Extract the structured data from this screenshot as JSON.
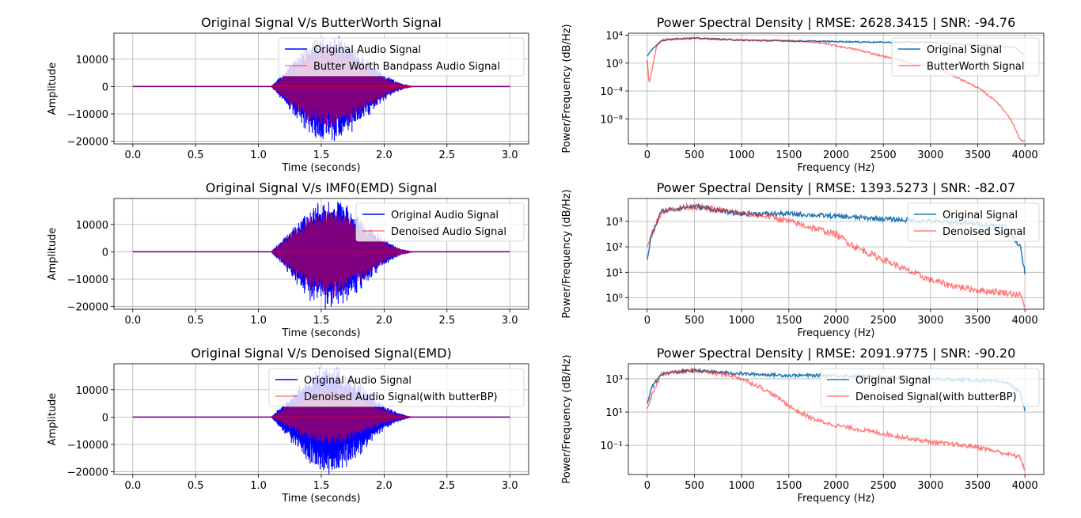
{
  "chart_data": [
    {
      "type": "line",
      "kind": "time",
      "title": "Original Signal V/s ButterWorth Signal",
      "xlabel": "Time (seconds)",
      "ylabel": "Amplitude",
      "xlim": [
        -0.15,
        3.15
      ],
      "ylim": [
        -21000,
        19500
      ],
      "xticks": [
        0,
        0.5,
        1.0,
        1.5,
        2.0,
        2.5,
        3.0
      ],
      "xtick_labels": [
        "0.0",
        "0.5",
        "1.0",
        "1.5",
        "2.0",
        "2.5",
        "3.0"
      ],
      "yticks": [
        -20000,
        -10000,
        0,
        10000
      ],
      "ytick_labels": [
        "−20000",
        "−10000",
        "0",
        "10000"
      ],
      "grid": true,
      "legend_position": "upper-right",
      "signal_span": [
        1.1,
        2.25
      ],
      "original_peak": [
        18000,
        -19500
      ],
      "filtered_peak": [
        16500,
        -17000
      ],
      "series": [
        {
          "name": "Original Audio Signal",
          "color": "#0000ff"
        },
        {
          "name": "Butter Worth Bandpass Audio Signal",
          "color": "#ff0000",
          "alpha": 0.5
        }
      ]
    },
    {
      "type": "line",
      "kind": "psd",
      "title": "Power Spectral Density | RMSE: 2628.3415 | SNR: -94.76",
      "xlabel": "Frequency (Hz)",
      "ylabel": "Power/Frequency (dB/Hz)",
      "log_y": true,
      "xlim": [
        -200,
        4200
      ],
      "ylim_log10": [
        -11.6,
        4.3
      ],
      "xticks": [
        0,
        500,
        1000,
        1500,
        2000,
        2500,
        3000,
        3500,
        4000
      ],
      "yticks_exp": [
        4,
        0,
        -4,
        -8
      ],
      "grid": true,
      "legend_position": "upper-right",
      "series": [
        {
          "name": "Original Signal",
          "color": "#1f77b4",
          "x": [
            0,
            50,
            150,
            300,
            500,
            1000,
            1500,
            2000,
            2500,
            3000,
            3500,
            3900,
            4000
          ],
          "log10_y": [
            1.0,
            2.0,
            3.2,
            3.5,
            3.6,
            3.3,
            3.2,
            3.1,
            3.0,
            3.0,
            2.6,
            2.3,
            1.0
          ]
        },
        {
          "name": "ButterWorth Signal",
          "color": "#ff0000",
          "alpha": 0.5,
          "x": [
            0,
            20,
            50,
            100,
            150,
            300,
            500,
            1000,
            1500,
            1800,
            2000,
            2200,
            2500,
            2800,
            3000,
            3200,
            3500,
            3700,
            3850,
            3950,
            4000
          ],
          "log10_y": [
            0.5,
            -3.0,
            -1.0,
            2.5,
            3.3,
            3.5,
            3.6,
            3.3,
            3.2,
            3.0,
            2.5,
            2.0,
            1.0,
            0.0,
            -0.5,
            -1.5,
            -3.5,
            -5.5,
            -8.0,
            -11.0,
            -11.2
          ]
        }
      ]
    },
    {
      "type": "line",
      "kind": "time",
      "title": "Original Signal V/s IMF0(EMD) Signal",
      "xlabel": "Time (seconds)",
      "ylabel": "Amplitude",
      "xlim": [
        -0.15,
        3.15
      ],
      "ylim": [
        -21000,
        19500
      ],
      "xticks": [
        0,
        0.5,
        1.0,
        1.5,
        2.0,
        2.5,
        3.0
      ],
      "xtick_labels": [
        "0.0",
        "0.5",
        "1.0",
        "1.5",
        "2.0",
        "2.5",
        "3.0"
      ],
      "yticks": [
        -20000,
        -10000,
        0,
        10000
      ],
      "ytick_labels": [
        "−20000",
        "−10000",
        "0",
        "10000"
      ],
      "grid": true,
      "legend_position": "upper-right",
      "signal_span": [
        1.1,
        2.25
      ],
      "original_peak": [
        18000,
        -19500
      ],
      "filtered_peak": [
        17000,
        -17500
      ],
      "series": [
        {
          "name": "Original Audio Signal",
          "color": "#0000ff"
        },
        {
          "name": "Denoised Audio Signal",
          "color": "#ff0000",
          "alpha": 0.5
        }
      ]
    },
    {
      "type": "line",
      "kind": "psd",
      "title": "Power Spectral Density | RMSE: 1393.5273 | SNR: -82.07",
      "xlabel": "Frequency (Hz)",
      "ylabel": "Power/Frequency (dB/Hz)",
      "log_y": true,
      "xlim": [
        -200,
        4200
      ],
      "ylim_log10": [
        -0.45,
        3.9
      ],
      "xticks": [
        0,
        500,
        1000,
        1500,
        2000,
        2500,
        3000,
        3500,
        4000
      ],
      "yticks_exp": [
        3,
        2,
        1,
        0
      ],
      "grid": true,
      "legend_position": "upper-right",
      "series": [
        {
          "name": "Original Signal",
          "color": "#1f77b4",
          "x": [
            0,
            50,
            150,
            300,
            500,
            800,
            1000,
            1500,
            2000,
            2500,
            3000,
            3500,
            3800,
            3950,
            4000
          ],
          "log10_y": [
            1.5,
            2.5,
            3.4,
            3.5,
            3.6,
            3.4,
            3.3,
            3.3,
            3.2,
            3.1,
            3.0,
            2.9,
            2.8,
            2.0,
            1.0
          ]
        },
        {
          "name": "Denoised Signal",
          "color": "#ff0000",
          "alpha": 0.5,
          "x": [
            0,
            50,
            150,
            300,
            500,
            1000,
            1300,
            1500,
            1700,
            2000,
            2200,
            2500,
            2800,
            3000,
            3200,
            3500,
            3800,
            3950,
            4000
          ],
          "log10_y": [
            2.0,
            2.5,
            3.4,
            3.5,
            3.6,
            3.3,
            3.2,
            3.0,
            2.8,
            2.5,
            2.0,
            1.5,
            1.0,
            0.7,
            0.5,
            0.3,
            0.2,
            0.1,
            -0.3
          ]
        }
      ]
    },
    {
      "type": "line",
      "kind": "time",
      "title": "Original Signal V/s Denoised Signal(EMD)",
      "xlabel": "Time (seconds)",
      "ylabel": "Amplitude",
      "xlim": [
        -0.15,
        3.15
      ],
      "ylim": [
        -21000,
        19500
      ],
      "xticks": [
        0,
        0.5,
        1.0,
        1.5,
        2.0,
        2.5,
        3.0
      ],
      "xtick_labels": [
        "0.0",
        "0.5",
        "1.0",
        "1.5",
        "2.0",
        "2.5",
        "3.0"
      ],
      "yticks": [
        -20000,
        -10000,
        0,
        10000
      ],
      "ytick_labels": [
        "−20000",
        "−10000",
        "0",
        "10000"
      ],
      "grid": true,
      "legend_position": "upper-right",
      "signal_span": [
        1.1,
        2.25
      ],
      "original_peak": [
        18000,
        -19500
      ],
      "filtered_peak": [
        13000,
        -11000
      ],
      "series": [
        {
          "name": "Original Audio Signal",
          "color": "#0000ff"
        },
        {
          "name": "Denoised Audio Signal(with butterBP)",
          "color": "#ff0000",
          "alpha": 0.5
        }
      ]
    },
    {
      "type": "line",
      "kind": "psd",
      "title": "Power Spectral Density | RMSE: 2091.9775 | SNR: -90.20",
      "xlabel": "Frequency (Hz)",
      "ylabel": "Power/Frequency (dB/Hz)",
      "log_y": true,
      "xlim": [
        -200,
        4200
      ],
      "ylim_log10": [
        -2.75,
        3.9
      ],
      "xticks": [
        0,
        500,
        1000,
        1500,
        2000,
        2500,
        3000,
        3500,
        4000
      ],
      "yticks_exp": [
        3,
        1,
        -1
      ],
      "grid": true,
      "legend_position": "upper-right",
      "series": [
        {
          "name": "Original Signal",
          "color": "#1f77b4",
          "x": [
            0,
            50,
            150,
            300,
            500,
            1000,
            1500,
            2000,
            2500,
            3000,
            3500,
            3800,
            3950,
            4000
          ],
          "log10_y": [
            1.5,
            2.5,
            3.3,
            3.4,
            3.5,
            3.3,
            3.2,
            3.2,
            3.1,
            3.0,
            2.9,
            2.8,
            2.2,
            1.0
          ]
        },
        {
          "name": "Denoised Signal(with butterBP)",
          "color": "#ff0000",
          "alpha": 0.5,
          "x": [
            0,
            50,
            150,
            300,
            500,
            900,
            1000,
            1200,
            1400,
            1600,
            1800,
            2000,
            2500,
            3000,
            3500,
            3800,
            3950,
            4000
          ],
          "log10_y": [
            1.2,
            2.0,
            3.3,
            3.4,
            3.5,
            3.2,
            3.0,
            2.5,
            1.8,
            1.0,
            0.5,
            0.2,
            -0.3,
            -0.8,
            -1.1,
            -1.5,
            -1.7,
            -2.5
          ]
        }
      ]
    }
  ]
}
